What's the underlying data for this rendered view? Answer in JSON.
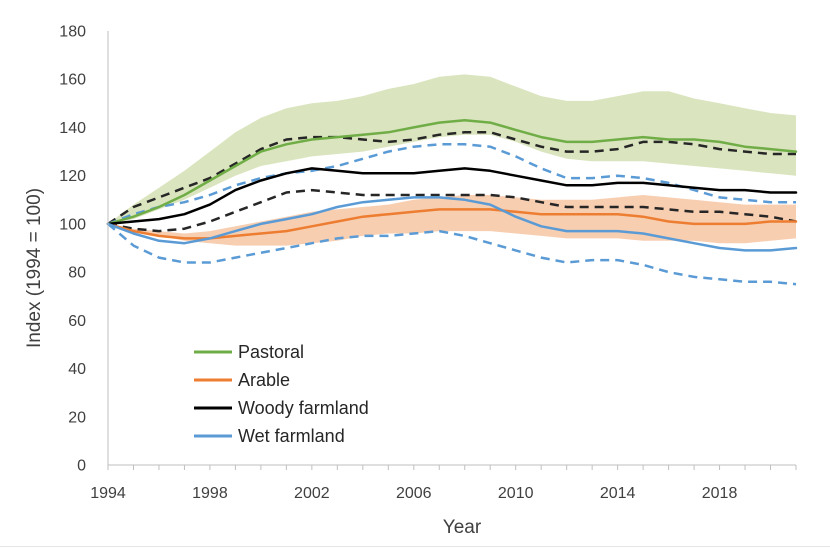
{
  "chart_data": {
    "type": "line",
    "title": "",
    "xlabel": "Year",
    "ylabel": "Index (1994 = 100)",
    "xlim": [
      1994,
      2021
    ],
    "ylim": [
      0,
      180
    ],
    "yticks": [
      0,
      20,
      40,
      60,
      80,
      100,
      120,
      140,
      160,
      180
    ],
    "xticks": [
      1994,
      1998,
      2002,
      2006,
      2010,
      2014,
      2018
    ],
    "grid": false,
    "legend_position": "bottom-left",
    "x": [
      1994,
      1995,
      1996,
      1997,
      1998,
      1999,
      2000,
      2001,
      2002,
      2003,
      2004,
      2005,
      2006,
      2007,
      2008,
      2009,
      2010,
      2011,
      2012,
      2013,
      2014,
      2015,
      2016,
      2017,
      2018,
      2019,
      2020,
      2021
    ],
    "bands": [
      {
        "name": "Pastoral range",
        "color": "#d8e4bc",
        "lower": [
          100,
          102,
          106,
          110,
          115,
          120,
          124,
          126,
          128,
          129,
          130,
          132,
          134,
          136,
          137,
          137,
          134,
          130,
          127,
          126,
          126,
          126,
          125,
          124,
          123,
          122,
          121,
          120
        ],
        "upper": [
          100,
          108,
          115,
          122,
          130,
          138,
          144,
          148,
          150,
          151,
          153,
          156,
          158,
          161,
          162,
          161,
          157,
          153,
          151,
          151,
          153,
          155,
          155,
          152,
          150,
          148,
          146,
          145
        ]
      },
      {
        "name": "Arable range",
        "color": "#f8cbad",
        "lower": [
          100,
          97,
          95,
          93,
          92,
          91,
          91,
          91,
          92,
          93,
          95,
          96,
          96,
          97,
          97,
          97,
          96,
          95,
          94,
          94,
          94,
          93,
          93,
          93,
          92,
          92,
          93,
          94
        ],
        "upper": [
          100,
          98,
          97,
          96,
          97,
          99,
          101,
          103,
          105,
          106,
          107,
          108,
          110,
          111,
          112,
          112,
          111,
          110,
          110,
          110,
          111,
          112,
          111,
          110,
          109,
          108,
          108,
          108
        ]
      }
    ],
    "series": [
      {
        "name": "Pastoral",
        "color": "#70ad47",
        "style": "solid",
        "in_legend": true,
        "values": [
          100,
          103,
          107,
          112,
          118,
          124,
          130,
          133,
          135,
          136,
          137,
          138,
          140,
          142,
          143,
          142,
          139,
          136,
          134,
          134,
          135,
          136,
          135,
          135,
          134,
          132,
          131,
          130
        ]
      },
      {
        "name": "Arable",
        "color": "#ed7d31",
        "style": "solid",
        "in_legend": true,
        "values": [
          100,
          97,
          95,
          94,
          94,
          95,
          96,
          97,
          99,
          101,
          103,
          104,
          105,
          106,
          106,
          106,
          105,
          104,
          104,
          104,
          104,
          103,
          101,
          100,
          100,
          100,
          101,
          101
        ]
      },
      {
        "name": "Woody farmland",
        "color": "#000000",
        "style": "solid",
        "in_legend": true,
        "values": [
          100,
          101,
          102,
          104,
          108,
          114,
          118,
          121,
          123,
          122,
          121,
          121,
          121,
          122,
          123,
          122,
          120,
          118,
          116,
          116,
          117,
          117,
          116,
          115,
          114,
          114,
          113,
          113
        ]
      },
      {
        "name": "Wet farmland",
        "color": "#5b9bd5",
        "style": "solid",
        "in_legend": true,
        "values": [
          100,
          96,
          93,
          92,
          94,
          97,
          100,
          102,
          104,
          107,
          109,
          110,
          111,
          111,
          110,
          108,
          103,
          99,
          97,
          97,
          97,
          96,
          94,
          92,
          90,
          89,
          89,
          90
        ]
      },
      {
        "name": "Woody farmland (dashed)",
        "color": "#262626",
        "style": "dashed",
        "in_legend": false,
        "values": [
          100,
          107,
          111,
          115,
          119,
          125,
          131,
          135,
          136,
          136,
          135,
          134,
          135,
          137,
          138,
          138,
          135,
          132,
          130,
          130,
          131,
          134,
          134,
          133,
          131,
          130,
          129,
          129
        ]
      },
      {
        "name": "Woody farmland lower (dashed)",
        "color": "#262626",
        "style": "dashed",
        "in_legend": false,
        "values": [
          100,
          98,
          97,
          98,
          101,
          105,
          109,
          113,
          114,
          113,
          112,
          112,
          112,
          112,
          112,
          112,
          111,
          109,
          107,
          107,
          107,
          107,
          106,
          105,
          105,
          104,
          103,
          101
        ]
      },
      {
        "name": "Wet farmland upper (dashed)",
        "color": "#5b9bd5",
        "style": "dashed",
        "in_legend": false,
        "values": [
          100,
          104,
          107,
          109,
          112,
          116,
          119,
          121,
          122,
          124,
          127,
          130,
          132,
          133,
          133,
          132,
          128,
          123,
          119,
          119,
          120,
          119,
          117,
          114,
          111,
          110,
          109,
          109
        ]
      },
      {
        "name": "Wet farmland lower (dashed)",
        "color": "#5b9bd5",
        "style": "dashed",
        "in_legend": false,
        "values": [
          100,
          91,
          86,
          84,
          84,
          86,
          88,
          90,
          92,
          94,
          95,
          95,
          96,
          97,
          95,
          92,
          89,
          86,
          84,
          85,
          85,
          83,
          80,
          78,
          77,
          76,
          76,
          75
        ]
      }
    ]
  }
}
